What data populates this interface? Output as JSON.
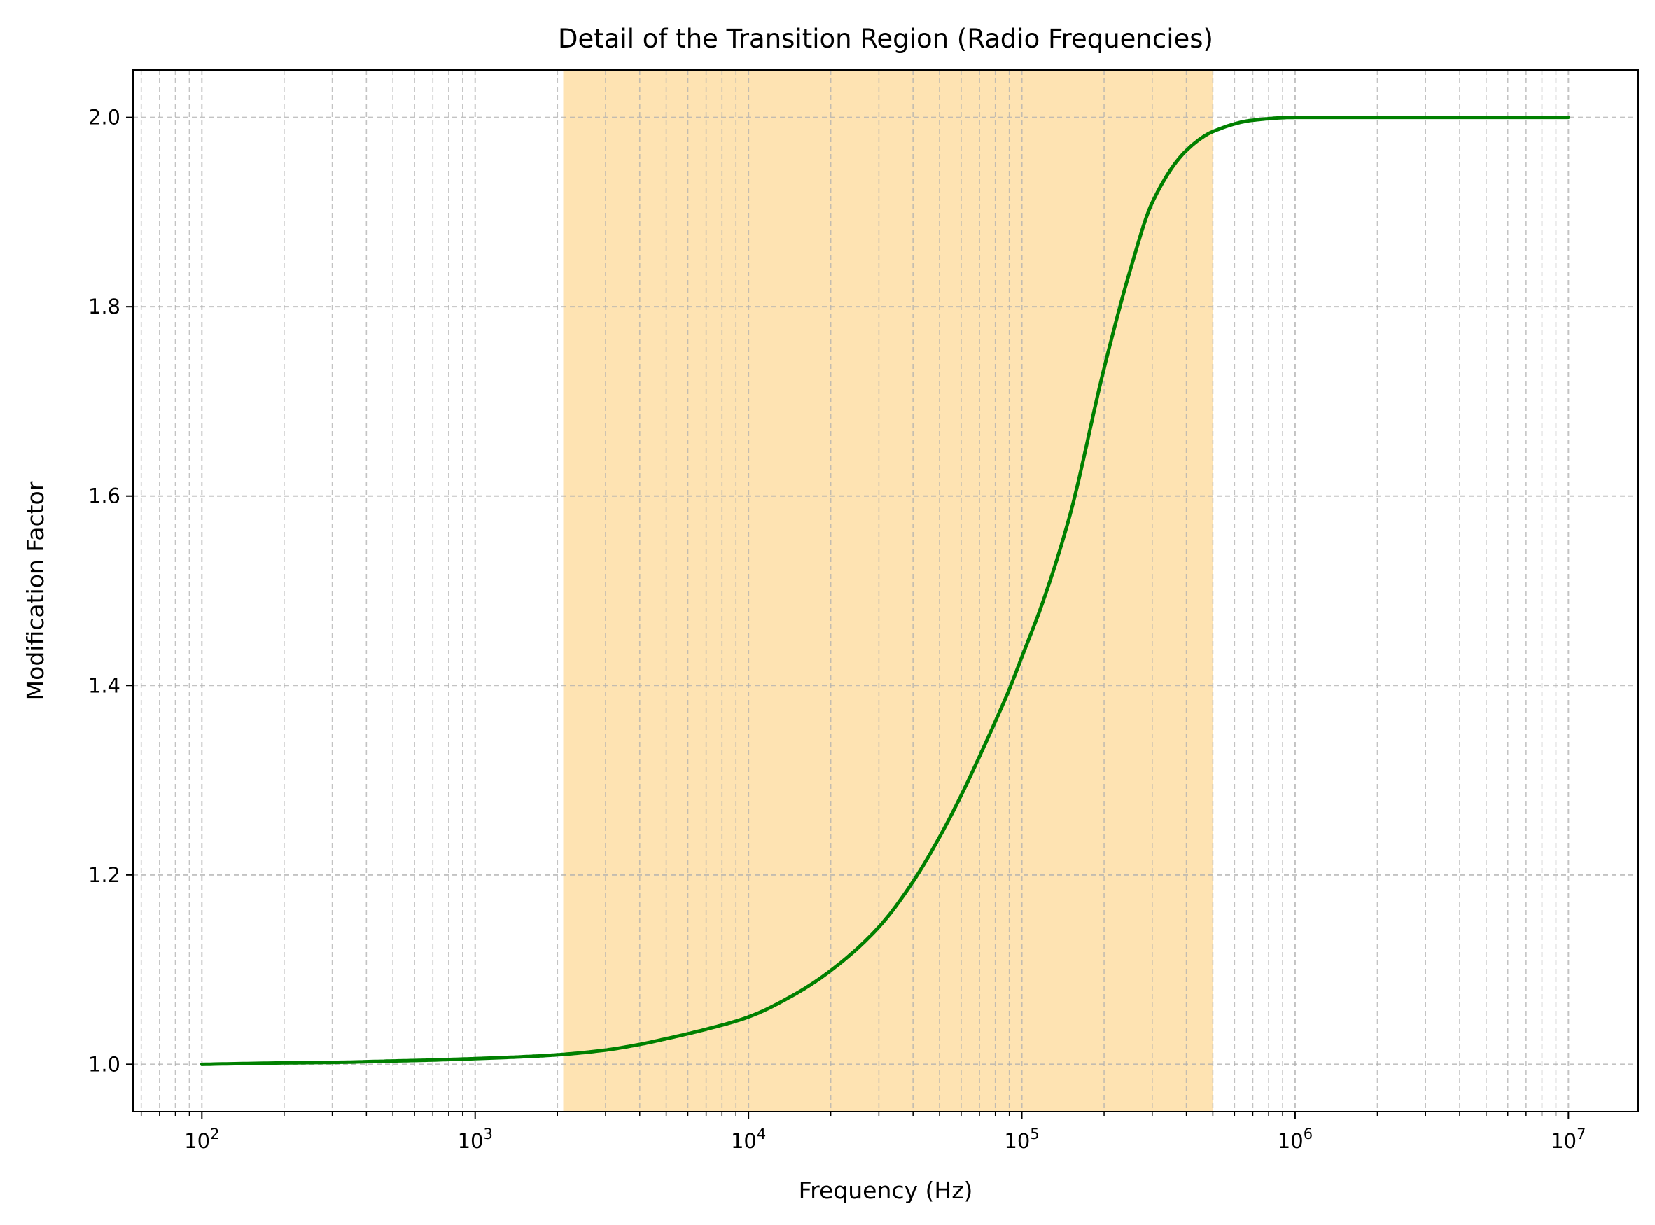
{
  "chart_data": {
    "type": "line",
    "title": "Detail of the Transition Region (Radio Frequencies)",
    "xlabel": "Frequency (Hz)",
    "ylabel": "Modification Factor",
    "xscale": "log",
    "xlim": [
      56,
      18000000
    ],
    "ylim": [
      0.95,
      2.05
    ],
    "grid": true,
    "grid_style": "dashed",
    "x_ticks": [
      100,
      1000,
      10000,
      100000,
      1000000,
      10000000
    ],
    "x_tick_labels": [
      {
        "base": "10",
        "exp": "2"
      },
      {
        "base": "10",
        "exp": "3"
      },
      {
        "base": "10",
        "exp": "4"
      },
      {
        "base": "10",
        "exp": "5"
      },
      {
        "base": "10",
        "exp": "6"
      },
      {
        "base": "10",
        "exp": "7"
      }
    ],
    "y_ticks": [
      1.0,
      1.2,
      1.4,
      1.6,
      1.8,
      2.0
    ],
    "y_tick_labels": [
      "1.0",
      "1.2",
      "1.4",
      "1.6",
      "1.8",
      "2.0"
    ],
    "shaded_region": {
      "x_start": 2100,
      "x_end": 500000,
      "color": "#fee3b2"
    },
    "series": [
      {
        "color": "#008000",
        "x": [
          100,
          200,
          300,
          500,
          700,
          1000,
          1500,
          2000,
          3000,
          4000,
          5000,
          7000,
          10000,
          15000,
          20000,
          30000,
          40000,
          50000,
          60000,
          70000,
          80000,
          90000,
          100000,
          120000,
          150000,
          200000,
          250000,
          300000,
          400000,
          500000,
          700000,
          1000000,
          2000000,
          5000000,
          10000000
        ],
        "y": [
          1.0,
          1.0015,
          1.002,
          1.0035,
          1.0045,
          1.006,
          1.008,
          1.01,
          1.015,
          1.021,
          1.027,
          1.037,
          1.05,
          1.075,
          1.099,
          1.145,
          1.193,
          1.24,
          1.284,
          1.325,
          1.362,
          1.396,
          1.43,
          1.49,
          1.58,
          1.735,
          1.84,
          1.91,
          1.965,
          1.985,
          1.997,
          2.0,
          2.0,
          2.0,
          2.0
        ]
      }
    ]
  }
}
